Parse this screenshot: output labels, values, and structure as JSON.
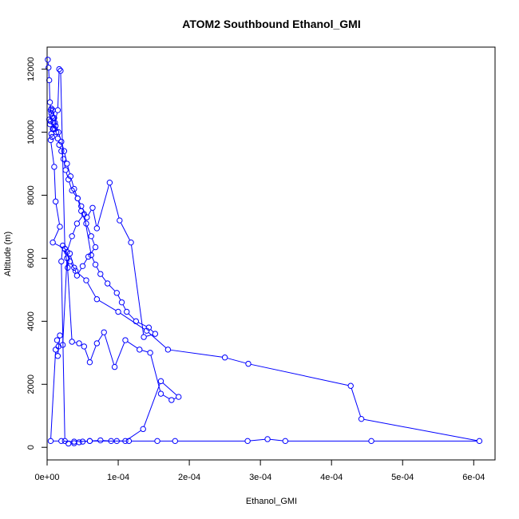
{
  "chart_data": {
    "type": "line",
    "title": "ATOM2 Southbound Ethanol_GMI",
    "xlabel": "Ethanol_GMI",
    "ylabel": "Altitude (m)",
    "xlim": [
      0,
      0.00063
    ],
    "ylim": [
      -400,
      12700
    ],
    "x_ticks": [
      0,
      0.0001,
      0.0002,
      0.0003,
      0.0004,
      0.0005,
      0.0006
    ],
    "x_tick_labels": [
      "0e+00",
      "1e-04",
      "2e-04",
      "3e-04",
      "4e-04",
      "5e-04",
      "6e-04"
    ],
    "y_ticks": [
      0,
      2000,
      4000,
      6000,
      8000,
      10000,
      12000
    ],
    "y_tick_labels": [
      "0",
      "2000",
      "4000",
      "6000",
      "8000",
      "10000",
      "12000"
    ],
    "grid": false,
    "color": "#0000ff",
    "series": [
      {
        "name": "",
        "x": [
          1e-06,
          2e-06,
          3e-06,
          4e-06,
          6e-06,
          8e-06,
          5e-06,
          3e-06,
          4e-06,
          8e-06,
          6e-06,
          7e-06,
          5e-06,
          1e-05,
          1.2e-05,
          1.8e-05,
          8e-06,
          2.5e-05,
          3.2e-05,
          4e-05,
          5.5e-05,
          7e-05,
          0.0001,
          0.00014,
          0.00017,
          0.00025,
          0.000283,
          0.000427,
          0.000442,
          0.000608,
          0.000456,
          0.000335,
          0.00031,
          0.000282,
          0.00018,
          0.000155,
          0.000115,
          9.8e-05,
          6e-05,
          3.8e-05,
          2e-05,
          5e-06,
          1.2e-05,
          1.5e-05,
          1.8e-05,
          1.4e-05,
          1.6e-05,
          2.2e-05,
          2.8e-05,
          3.5e-05,
          4.5e-05,
          5.2e-05,
          6e-05,
          7e-05,
          8e-05,
          9.5e-05,
          0.00011,
          0.00013,
          0.000145,
          0.00016,
          0.000175,
          0.000185,
          0.00016,
          0.000135,
          0.00011,
          9e-05,
          7.5e-05,
          6e-05,
          5e-05,
          4.5e-05,
          3.8e-05,
          3e-05,
          2.5e-05,
          2e-05,
          2.2e-05,
          2.8e-05,
          3.5e-05,
          4.2e-05,
          5.2e-05,
          6.2e-05,
          6.8e-05,
          7.5e-05,
          8.5e-05,
          9.8e-05,
          0.000105,
          0.000112,
          0.000125,
          0.000143,
          0.000152,
          0.000136,
          0.000118,
          0.000102,
          8.8e-05,
          7e-05,
          6.4e-05,
          5.6e-05,
          4.8e-05,
          4.3e-05,
          3.5e-05,
          3e-05,
          2.6e-05,
          2.3e-05,
          2e-05,
          1.7e-05,
          1.5e-05,
          1.3e-05,
          1.1e-05,
          9e-06,
          7e-06,
          5e-06,
          6e-06,
          8e-06,
          1e-05,
          1.2e-05,
          1.6e-05,
          2e-05,
          2.4e-05,
          2.8e-05,
          3.3e-05,
          3.8e-05,
          4.3e-05,
          4.8e-05,
          5.5e-05,
          6.2e-05,
          6.8e-05,
          5.8e-05,
          5e-05,
          4.2e-05,
          3.8e-05,
          3.2e-05,
          2.9e-05,
          2.5e-05,
          1.9e-05,
          1.7e-05,
          1.5e-05,
          1.1e-05,
          9e-06
        ],
        "y": [
          12300,
          12050,
          11650,
          10950,
          10600,
          10450,
          10350,
          10400,
          10250,
          10100,
          9950,
          9850,
          9750,
          8900,
          7800,
          7000,
          6500,
          6300,
          5900,
          5600,
          5300,
          4700,
          4300,
          3700,
          3100,
          2850,
          2650,
          1950,
          900,
          200,
          200,
          200,
          260,
          200,
          200,
          200,
          200,
          200,
          200,
          180,
          200,
          200,
          3100,
          2900,
          3550,
          3400,
          3200,
          3250,
          6000,
          3350,
          3300,
          3200,
          2700,
          3300,
          3650,
          2550,
          3400,
          3100,
          3000,
          1700,
          1500,
          1600,
          2100,
          580,
          200,
          200,
          220,
          200,
          180,
          160,
          130,
          120,
          200,
          5900,
          6400,
          6200,
          6700,
          7100,
          7400,
          6100,
          5800,
          5500,
          5200,
          4900,
          4600,
          4300,
          4000,
          3800,
          3600,
          3500,
          6500,
          7200,
          8400,
          6950,
          7600,
          7300,
          7650,
          7900,
          8150,
          8500,
          8800,
          9150,
          9400,
          9600,
          9800,
          10000,
          10100,
          10300,
          10500,
          10700,
          10750,
          10700,
          10450,
          10200,
          10000,
          9700,
          9400,
          9000,
          8600,
          8200,
          7900,
          7500,
          7100,
          6700,
          6350,
          6050,
          5750,
          5450,
          5700,
          6150,
          5700,
          6300,
          11950,
          12000,
          10700,
          10300,
          10100
        ]
      }
    ]
  }
}
